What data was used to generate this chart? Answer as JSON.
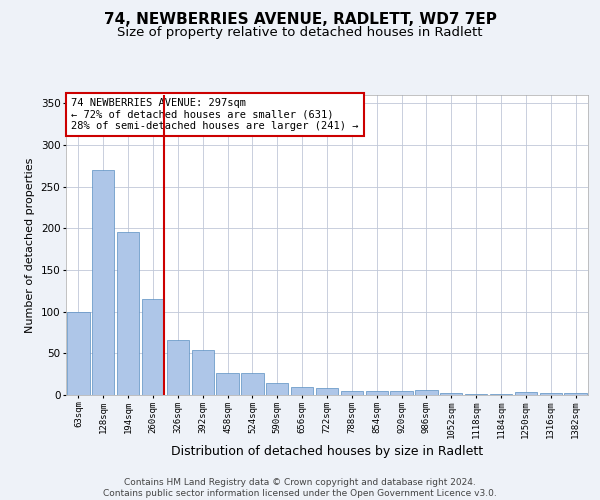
{
  "title1": "74, NEWBERRIES AVENUE, RADLETT, WD7 7EP",
  "title2": "Size of property relative to detached houses in Radlett",
  "xlabel": "Distribution of detached houses by size in Radlett",
  "ylabel": "Number of detached properties",
  "categories": [
    "63sqm",
    "128sqm",
    "194sqm",
    "260sqm",
    "326sqm",
    "392sqm",
    "458sqm",
    "524sqm",
    "590sqm",
    "656sqm",
    "722sqm",
    "788sqm",
    "854sqm",
    "920sqm",
    "986sqm",
    "1052sqm",
    "1118sqm",
    "1184sqm",
    "1250sqm",
    "1316sqm",
    "1382sqm"
  ],
  "values": [
    100,
    270,
    196,
    115,
    66,
    54,
    27,
    27,
    15,
    10,
    9,
    5,
    5,
    5,
    6,
    2,
    1,
    1,
    4,
    3,
    2
  ],
  "bar_color": "#aec6e8",
  "bar_edge_color": "#5a8fc2",
  "vline_color": "#cc0000",
  "annotation_box_text": "74 NEWBERRIES AVENUE: 297sqm\n← 72% of detached houses are smaller (631)\n28% of semi-detached houses are larger (241) →",
  "annotation_box_color": "#cc0000",
  "ylim": [
    0,
    360
  ],
  "yticks": [
    0,
    50,
    100,
    150,
    200,
    250,
    300,
    350
  ],
  "bg_color": "#eef2f8",
  "plot_bg_color": "#ffffff",
  "footer": "Contains HM Land Registry data © Crown copyright and database right 2024.\nContains public sector information licensed under the Open Government Licence v3.0.",
  "title1_fontsize": 11,
  "title2_fontsize": 9.5,
  "xlabel_fontsize": 9,
  "ylabel_fontsize": 8,
  "annotation_fontsize": 7.5,
  "footer_fontsize": 6.5
}
